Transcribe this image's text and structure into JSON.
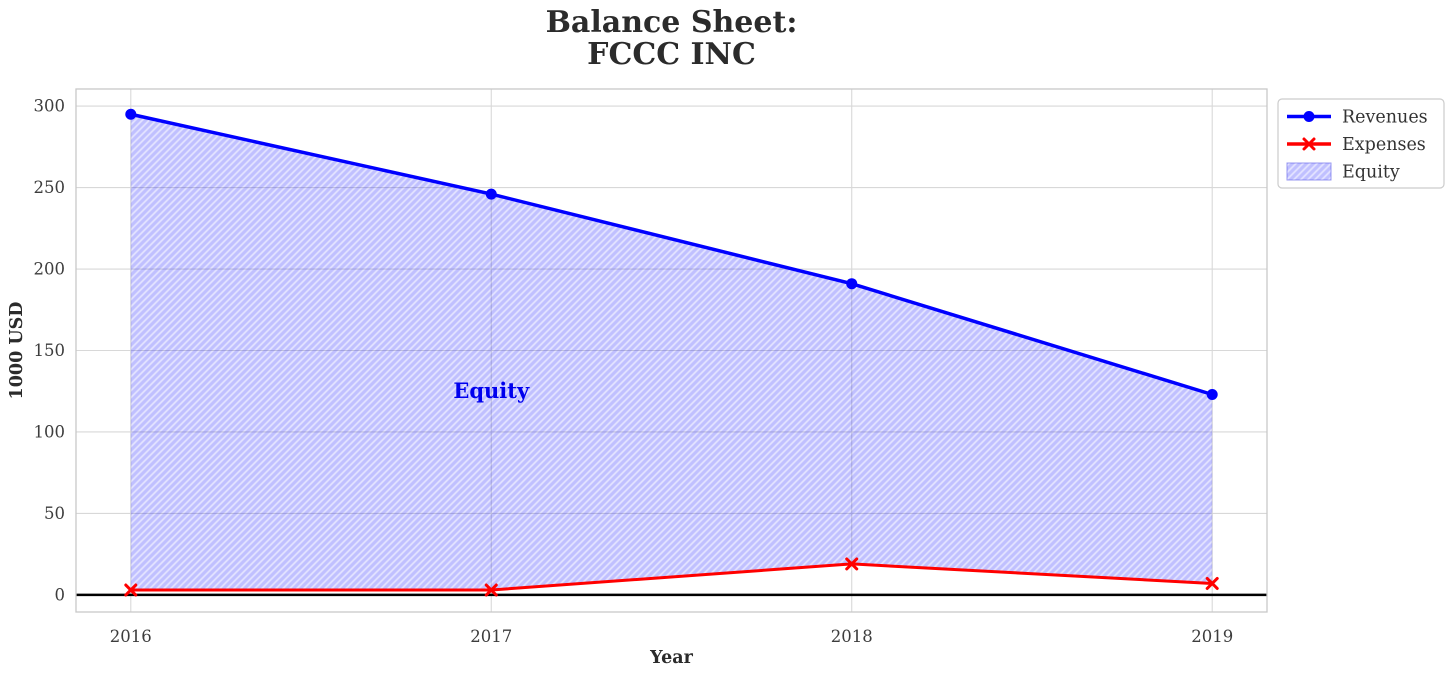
{
  "figure": {
    "title_line1": "Balance Sheet:",
    "title_line2": "FCCC INC",
    "xlabel": "Year",
    "ylabel": "1000 USD"
  },
  "legend": {
    "entries": [
      {
        "label": "Revenues",
        "sample": "line-with-circle-marker",
        "color": "#0000ff"
      },
      {
        "label": "Expenses",
        "sample": "line-with-x-marker",
        "color": "#ff0000"
      },
      {
        "label": "Equity",
        "sample": "hatched-patch",
        "color": "#0000ff"
      }
    ]
  },
  "chart_data": {
    "type": "line",
    "title": "Balance Sheet:\nFCCC INC",
    "xlabel": "Year",
    "ylabel": "1000 USD",
    "x": [
      2016,
      2017,
      2018,
      2019
    ],
    "series": [
      {
        "name": "Revenues",
        "values": [
          295,
          246,
          191,
          123
        ],
        "color": "#0000ff",
        "marker": "circle",
        "line_width": 3.5
      },
      {
        "name": "Expenses",
        "values": [
          3,
          3,
          19,
          7
        ],
        "color": "#ff0000",
        "marker": "x",
        "line_width": 3
      }
    ],
    "area": {
      "name": "Equity",
      "between": [
        "Expenses",
        "Revenues"
      ],
      "fill_color": "#0000ff",
      "fill_opacity": 0.12,
      "hatch": "/",
      "hatch_color": "#0000ff",
      "hatch_opacity": 0.14
    },
    "annotation": {
      "text": "Equity",
      "x": 2017,
      "y": 125,
      "color": "#0000ee"
    },
    "xlim": [
      2015.848,
      2019.152
    ],
    "ylim": [
      -10.5,
      310.5
    ],
    "xticks": [
      2016,
      2017,
      2018,
      2019
    ],
    "yticks": [
      0,
      50,
      100,
      150,
      200,
      250,
      300
    ],
    "grid": true,
    "zero_line": true,
    "legend_position": "outside-upper-right"
  },
  "colors": {
    "revenues": "#0000ff",
    "expenses": "#ff0000",
    "grid": "#d8d8d8",
    "spine": "#c8c8c8",
    "tick_text": "#3d3d3d",
    "label_text": "#2b2b2b",
    "zero_line": "#000000",
    "legend_border": "#cccccc",
    "legend_bg": "#ffffff"
  }
}
